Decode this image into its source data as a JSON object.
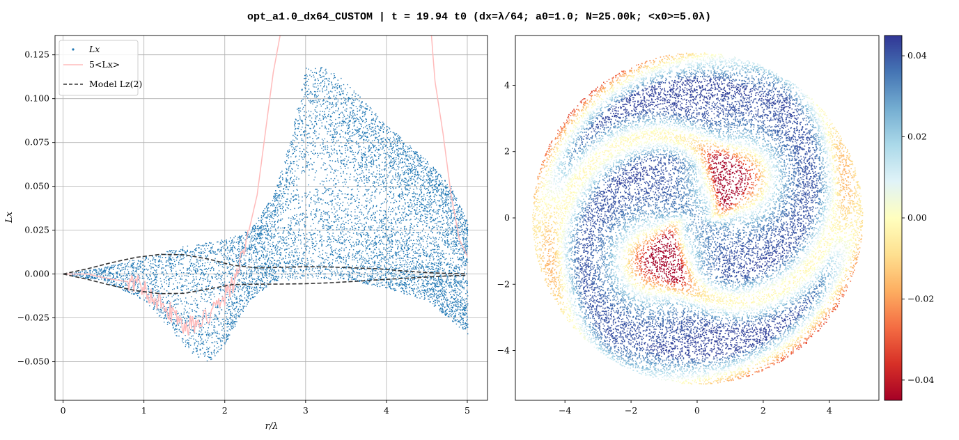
{
  "title": "opt_a1.0_dx64_CUSTOM | t = 19.94 t0 (dx=λ/64; a0=1.0; N=25.00k; <x0>=5.0λ)",
  "chart_data": [
    {
      "type": "scatter",
      "panel": "left",
      "xlabel": "r/λ",
      "ylabel": "Lx",
      "xlim": [
        -0.1,
        5.25
      ],
      "ylim": [
        -0.072,
        0.136
      ],
      "xticks": [
        0,
        1,
        2,
        3,
        4,
        5
      ],
      "xtick_labels": [
        "0",
        "1",
        "2",
        "3",
        "4",
        "5"
      ],
      "yticks": [
        -0.05,
        -0.025,
        0.0,
        0.025,
        0.05,
        0.075,
        0.1,
        0.125
      ],
      "ytick_labels": [
        "−0.050",
        "−0.025",
        "0.000",
        "0.025",
        "0.050",
        "0.075",
        "0.100",
        "0.125"
      ],
      "grid": true,
      "legend_position": "top-left",
      "series": [
        {
          "name": "Lx",
          "kind": "scatter",
          "color": "#1f77b4",
          "envelope_upper": [
            [
              0,
              0
            ],
            [
              0.5,
              0.004
            ],
            [
              1,
              0.01
            ],
            [
              1.5,
              0.016
            ],
            [
              2,
              0.02
            ],
            [
              2.3,
              0.025
            ],
            [
              2.6,
              0.045
            ],
            [
              2.8,
              0.075
            ],
            [
              3,
              0.118
            ],
            [
              3.2,
              0.119
            ],
            [
              3.5,
              0.11
            ],
            [
              4,
              0.085
            ],
            [
              4.5,
              0.065
            ],
            [
              4.8,
              0.05
            ],
            [
              5,
              0.03
            ]
          ],
          "envelope_lower": [
            [
              0,
              0
            ],
            [
              0.5,
              -0.004
            ],
            [
              1,
              -0.015
            ],
            [
              1.3,
              -0.03
            ],
            [
              1.6,
              -0.047
            ],
            [
              1.8,
              -0.05
            ],
            [
              2,
              -0.04
            ],
            [
              2.3,
              -0.015
            ],
            [
              2.6,
              -0.004
            ],
            [
              3,
              -0.002
            ],
            [
              3.5,
              -0.003
            ],
            [
              4,
              -0.008
            ],
            [
              4.5,
              -0.015
            ],
            [
              5,
              -0.034
            ]
          ]
        },
        {
          "name": "5<Lx>",
          "kind": "line",
          "color": "#ffbbbb",
          "points": [
            [
              0,
              0
            ],
            [
              0.3,
              0.0
            ],
            [
              0.6,
              -0.003
            ],
            [
              0.9,
              -0.005
            ],
            [
              1.1,
              -0.012
            ],
            [
              1.3,
              -0.02
            ],
            [
              1.5,
              -0.03
            ],
            [
              1.7,
              -0.028
            ],
            [
              1.9,
              -0.02
            ],
            [
              2.1,
              -0.005
            ],
            [
              2.2,
              0.01
            ],
            [
              2.3,
              0.025
            ],
            [
              2.4,
              0.045
            ],
            [
              2.5,
              0.08
            ],
            [
              2.6,
              0.115
            ],
            [
              2.7,
              0.14
            ],
            [
              4.55,
              0.14
            ],
            [
              4.6,
              0.11
            ],
            [
              4.7,
              0.08
            ],
            [
              4.8,
              0.045
            ],
            [
              4.9,
              0.02
            ],
            [
              5.0,
              0.01
            ]
          ]
        },
        {
          "name": "Model Lz(2)",
          "kind": "line",
          "dashed": true,
          "color": "#333333",
          "points": [
            [
              0,
              0
            ],
            [
              0.3,
              0.003
            ],
            [
              0.6,
              0.0065
            ],
            [
              0.9,
              0.0095
            ],
            [
              1.2,
              0.0112
            ],
            [
              1.5,
              0.011
            ],
            [
              1.8,
              0.0085
            ],
            [
              2.1,
              0.005
            ],
            [
              2.4,
              0.0035
            ],
            [
              2.7,
              0.0038
            ],
            [
              3.0,
              0.0042
            ],
            [
              3.3,
              0.004
            ],
            [
              3.6,
              0.0035
            ],
            [
              3.9,
              0.003
            ],
            [
              4.2,
              0.0018
            ],
            [
              4.5,
              0.0008
            ],
            [
              4.8,
              0.0003
            ],
            [
              5.0,
              0.0002
            ]
          ],
          "points_neg": [
            [
              0,
              0
            ],
            [
              0.3,
              -0.003
            ],
            [
              0.6,
              -0.0065
            ],
            [
              0.9,
              -0.0095
            ],
            [
              1.2,
              -0.0112
            ],
            [
              1.5,
              -0.011
            ],
            [
              1.8,
              -0.0085
            ],
            [
              2.1,
              -0.006
            ],
            [
              2.4,
              -0.0058
            ],
            [
              2.7,
              -0.0057
            ],
            [
              3.0,
              -0.0055
            ],
            [
              3.3,
              -0.005
            ],
            [
              3.6,
              -0.0042
            ],
            [
              3.9,
              -0.0033
            ],
            [
              4.2,
              -0.0025
            ],
            [
              4.5,
              -0.0017
            ],
            [
              4.8,
              -0.001
            ],
            [
              5.0,
              -0.0007
            ]
          ]
        }
      ]
    },
    {
      "type": "scatter",
      "panel": "right",
      "xlim": [
        -5.5,
        5.5
      ],
      "ylim": [
        -5.5,
        5.5
      ],
      "xticks": [
        -4,
        -2,
        0,
        2,
        4
      ],
      "xtick_labels": [
        "−4",
        "−2",
        "0",
        "2",
        "4"
      ],
      "yticks": [
        -4,
        -2,
        0,
        2,
        4
      ],
      "ytick_labels": [
        "−4",
        "−2",
        "0",
        "2",
        "4"
      ],
      "grid": false,
      "disk_radius": 5.0,
      "colormap": "RdYlBu",
      "colorbar": {
        "min": -0.045,
        "max": 0.045,
        "ticks": [
          0.04,
          0.02,
          0.0,
          -0.02,
          -0.04
        ],
        "tick_labels": [
          "0.04",
          "0.02",
          "0.00",
          "−0.02",
          "−0.04"
        ]
      }
    }
  ]
}
